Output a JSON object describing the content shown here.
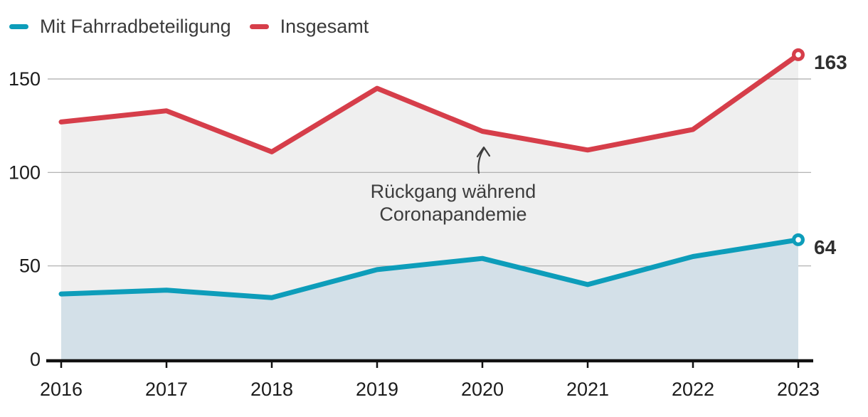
{
  "legend": {
    "items": [
      {
        "label": "Mit Fahrradbeteiligung",
        "color": "#0d9dba"
      },
      {
        "label": "Insgesamt",
        "color": "#d63e4a"
      }
    ]
  },
  "chart_data": {
    "type": "line",
    "categories": [
      "2016",
      "2017",
      "2018",
      "2019",
      "2020",
      "2021",
      "2022",
      "2023"
    ],
    "series": [
      {
        "name": "Insgesamt",
        "color": "#d63e4a",
        "area_fill": "#efefef",
        "values": [
          127,
          133,
          111,
          145,
          122,
          112,
          123,
          163
        ],
        "end_label": "163"
      },
      {
        "name": "Mit Fahrradbeteiligung",
        "color": "#0d9dba",
        "area_fill": "#d3e0e8",
        "values": [
          35,
          37,
          33,
          48,
          54,
          40,
          55,
          64
        ],
        "end_label": "64"
      }
    ],
    "yticks": [
      0,
      50,
      100,
      150
    ],
    "ylim": [
      0,
      175
    ],
    "grid": true,
    "legend_position": "top-left",
    "annotation": {
      "lines": [
        "Rückgang während",
        "Coronapandemie"
      ],
      "target_category": "2020"
    }
  },
  "colors": {
    "grid": "#aaaaaa",
    "axis": "#111111",
    "tick_label": "#1c1c1c",
    "annotation": "#3d3d3d",
    "value_label": "#2f2f2f",
    "background": "#ffffff"
  }
}
